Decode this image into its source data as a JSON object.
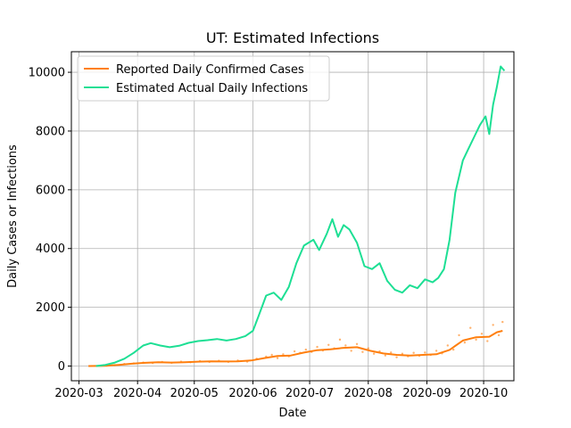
{
  "chart_data": {
    "type": "line",
    "title": "UT: Estimated Infections",
    "xlabel": "Date",
    "ylabel": "Daily Cases or Infections",
    "xlim": [
      "2020-02-26",
      "2020-10-17"
    ],
    "ylim": [
      -500,
      10700
    ],
    "x_ticks": [
      "2020-03-01",
      "2020-04-01",
      "2020-05-01",
      "2020-06-01",
      "2020-07-01",
      "2020-08-01",
      "2020-09-01",
      "2020-10-01"
    ],
    "x_tick_labels": [
      "2020-03",
      "2020-04",
      "2020-05",
      "2020-06",
      "2020-07",
      "2020-08",
      "2020-09",
      "2020-10"
    ],
    "y_ticks": [
      0,
      2000,
      4000,
      6000,
      8000,
      10000
    ],
    "y_tick_labels": [
      "0",
      "2000",
      "4000",
      "6000",
      "8000",
      "10000"
    ],
    "grid": true,
    "legend_position": "top-left",
    "colors": {
      "reported": "#ff7f0e",
      "estimated": "#1ddf94"
    },
    "series": [
      {
        "name": "Reported Daily Confirmed Cases",
        "color": "#ff7f0e",
        "points": [
          [
            "2020-03-06",
            0
          ],
          [
            "2020-03-15",
            10
          ],
          [
            "2020-03-22",
            40
          ],
          [
            "2020-03-29",
            80
          ],
          [
            "2020-04-05",
            110
          ],
          [
            "2020-04-12",
            130
          ],
          [
            "2020-04-19",
            120
          ],
          [
            "2020-04-26",
            130
          ],
          [
            "2020-05-03",
            150
          ],
          [
            "2020-05-10",
            160
          ],
          [
            "2020-05-17",
            155
          ],
          [
            "2020-05-24",
            160
          ],
          [
            "2020-05-31",
            190
          ],
          [
            "2020-06-07",
            270
          ],
          [
            "2020-06-14",
            340
          ],
          [
            "2020-06-21",
            360
          ],
          [
            "2020-06-28",
            460
          ],
          [
            "2020-07-05",
            540
          ],
          [
            "2020-07-12",
            570
          ],
          [
            "2020-07-19",
            620
          ],
          [
            "2020-07-26",
            640
          ],
          [
            "2020-08-02",
            520
          ],
          [
            "2020-08-09",
            430
          ],
          [
            "2020-08-16",
            380
          ],
          [
            "2020-08-23",
            360
          ],
          [
            "2020-08-30",
            380
          ],
          [
            "2020-09-06",
            400
          ],
          [
            "2020-09-13",
            550
          ],
          [
            "2020-09-20",
            870
          ],
          [
            "2020-09-27",
            980
          ],
          [
            "2020-10-04",
            1000
          ],
          [
            "2020-10-08",
            1150
          ],
          [
            "2020-10-11",
            1200
          ]
        ]
      },
      {
        "name": "Estimated Actual Daily Infections",
        "color": "#1ddf94",
        "points": [
          [
            "2020-03-10",
            0
          ],
          [
            "2020-03-15",
            40
          ],
          [
            "2020-03-20",
            120
          ],
          [
            "2020-03-25",
            250
          ],
          [
            "2020-03-30",
            450
          ],
          [
            "2020-04-04",
            700
          ],
          [
            "2020-04-08",
            780
          ],
          [
            "2020-04-13",
            700
          ],
          [
            "2020-04-18",
            640
          ],
          [
            "2020-04-23",
            690
          ],
          [
            "2020-04-28",
            790
          ],
          [
            "2020-05-03",
            850
          ],
          [
            "2020-05-08",
            880
          ],
          [
            "2020-05-13",
            920
          ],
          [
            "2020-05-18",
            870
          ],
          [
            "2020-05-23",
            920
          ],
          [
            "2020-05-28",
            1020
          ],
          [
            "2020-06-01",
            1200
          ],
          [
            "2020-06-04",
            1700
          ],
          [
            "2020-06-08",
            2400
          ],
          [
            "2020-06-12",
            2500
          ],
          [
            "2020-06-16",
            2250
          ],
          [
            "2020-06-20",
            2700
          ],
          [
            "2020-06-24",
            3500
          ],
          [
            "2020-06-28",
            4100
          ],
          [
            "2020-07-03",
            4300
          ],
          [
            "2020-07-06",
            3950
          ],
          [
            "2020-07-10",
            4500
          ],
          [
            "2020-07-13",
            5000
          ],
          [
            "2020-07-16",
            4400
          ],
          [
            "2020-07-19",
            4800
          ],
          [
            "2020-07-22",
            4650
          ],
          [
            "2020-07-26",
            4200
          ],
          [
            "2020-07-30",
            3400
          ],
          [
            "2020-08-03",
            3300
          ],
          [
            "2020-08-07",
            3500
          ],
          [
            "2020-08-11",
            2900
          ],
          [
            "2020-08-15",
            2600
          ],
          [
            "2020-08-19",
            2500
          ],
          [
            "2020-08-23",
            2750
          ],
          [
            "2020-08-27",
            2650
          ],
          [
            "2020-08-31",
            2950
          ],
          [
            "2020-09-04",
            2850
          ],
          [
            "2020-09-07",
            3000
          ],
          [
            "2020-09-10",
            3300
          ],
          [
            "2020-09-13",
            4300
          ],
          [
            "2020-09-16",
            5900
          ],
          [
            "2020-09-20",
            7000
          ],
          [
            "2020-09-23",
            7400
          ],
          [
            "2020-09-26",
            7800
          ],
          [
            "2020-09-29",
            8200
          ],
          [
            "2020-10-02",
            8500
          ],
          [
            "2020-10-04",
            7900
          ],
          [
            "2020-10-06",
            8900
          ],
          [
            "2020-10-08",
            9500
          ],
          [
            "2020-10-10",
            10200
          ],
          [
            "2020-10-12",
            10050
          ]
        ]
      }
    ],
    "raw_reported_points": [
      [
        "2020-03-20",
        30
      ],
      [
        "2020-03-25",
        70
      ],
      [
        "2020-03-30",
        90
      ],
      [
        "2020-04-04",
        120
      ],
      [
        "2020-04-09",
        100
      ],
      [
        "2020-04-14",
        140
      ],
      [
        "2020-04-19",
        110
      ],
      [
        "2020-04-24",
        150
      ],
      [
        "2020-04-29",
        130
      ],
      [
        "2020-05-04",
        170
      ],
      [
        "2020-05-09",
        140
      ],
      [
        "2020-05-14",
        180
      ],
      [
        "2020-05-19",
        140
      ],
      [
        "2020-05-24",
        190
      ],
      [
        "2020-05-29",
        150
      ],
      [
        "2020-06-03",
        250
      ],
      [
        "2020-06-08",
        320
      ],
      [
        "2020-06-11",
        380
      ],
      [
        "2020-06-14",
        270
      ],
      [
        "2020-06-17",
        400
      ],
      [
        "2020-06-20",
        330
      ],
      [
        "2020-06-23",
        500
      ],
      [
        "2020-06-26",
        450
      ],
      [
        "2020-06-29",
        560
      ],
      [
        "2020-07-02",
        480
      ],
      [
        "2020-07-05",
        650
      ],
      [
        "2020-07-08",
        530
      ],
      [
        "2020-07-11",
        720
      ],
      [
        "2020-07-14",
        600
      ],
      [
        "2020-07-17",
        900
      ],
      [
        "2020-07-20",
        700
      ],
      [
        "2020-07-23",
        520
      ],
      [
        "2020-07-26",
        750
      ],
      [
        "2020-07-29",
        480
      ],
      [
        "2020-08-01",
        600
      ],
      [
        "2020-08-04",
        420
      ],
      [
        "2020-08-07",
        500
      ],
      [
        "2020-08-10",
        360
      ],
      [
        "2020-08-13",
        460
      ],
      [
        "2020-08-16",
        300
      ],
      [
        "2020-08-19",
        420
      ],
      [
        "2020-08-22",
        330
      ],
      [
        "2020-08-25",
        450
      ],
      [
        "2020-08-28",
        350
      ],
      [
        "2020-08-31",
        460
      ],
      [
        "2020-09-03",
        380
      ],
      [
        "2020-09-06",
        520
      ],
      [
        "2020-09-09",
        430
      ],
      [
        "2020-09-12",
        700
      ],
      [
        "2020-09-15",
        560
      ],
      [
        "2020-09-18",
        1050
      ],
      [
        "2020-09-21",
        800
      ],
      [
        "2020-09-24",
        1300
      ],
      [
        "2020-09-27",
        900
      ],
      [
        "2020-09-30",
        1100
      ],
      [
        "2020-10-03",
        850
      ],
      [
        "2020-10-06",
        1400
      ],
      [
        "2020-10-09",
        1050
      ],
      [
        "2020-10-11",
        1500
      ]
    ]
  }
}
